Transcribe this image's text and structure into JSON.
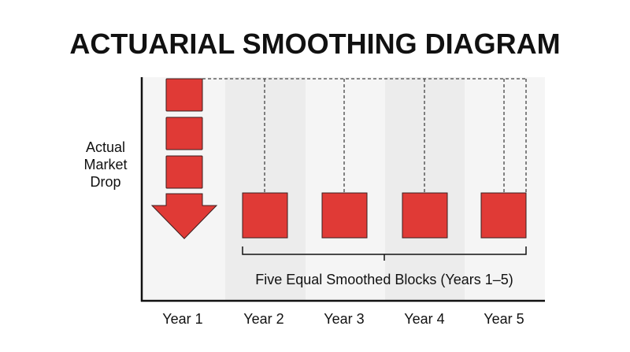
{
  "title": "ACTUARIAL SMOOTHING DIAGRAM",
  "side_label": [
    "Actual",
    "Market",
    "Drop"
  ],
  "years": [
    "Year 1",
    "Year 2",
    "Year 3",
    "Year 4",
    "Year 5"
  ],
  "brace_caption": "Five Equal Smoothed Blocks (Years 1–5)",
  "colors": {
    "block": "#e03a36",
    "block_stroke": "#3a1f1f",
    "axis": "#111111",
    "band_light": "#f5f5f5",
    "band_dark": "#ececec",
    "dashed": "#444444"
  }
}
